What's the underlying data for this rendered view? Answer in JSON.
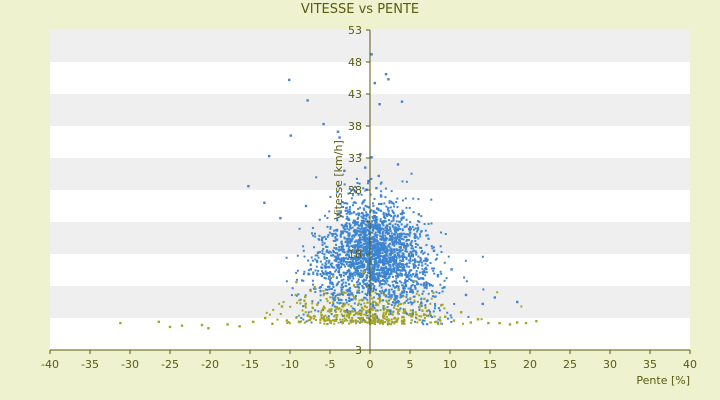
{
  "chart_data": {
    "type": "scatter",
    "title": "VITESSE vs PENTE",
    "xlabel": "Pente [%]",
    "ylabel": "Vitesse [km/h]",
    "xlim": [
      -40,
      40
    ],
    "ylim": [
      3,
      53
    ],
    "x_ticks": [
      -40,
      -35,
      -30,
      -25,
      -20,
      -15,
      -10,
      -5,
      0,
      5,
      10,
      15,
      20,
      25,
      30,
      35,
      40
    ],
    "y_ticks": [
      3,
      8,
      13,
      18,
      23,
      28,
      33,
      38,
      43,
      48,
      53
    ],
    "y_tick_labels": [
      "3",
      "",
      "",
      "18",
      "",
      "28",
      "33",
      "38",
      "43",
      "48",
      "53"
    ],
    "grid": "horizontal alternating bands",
    "colors": {
      "page_bg": "#eef2cf",
      "band_light": "#ffffff",
      "band_dark": "#efefef",
      "axis": "#5a5a10",
      "series1": "#3d85d1",
      "series2": "#a5a520"
    },
    "series": [
      {
        "color": "#3d85d1",
        "points": [
          [
            -10.1,
            45.2
          ],
          [
            -7.8,
            42.0
          ],
          [
            -9.9,
            36.5
          ],
          [
            -12.6,
            33.3
          ],
          [
            -15.2,
            28.6
          ],
          [
            -5.8,
            38.3
          ],
          [
            -4.0,
            37.1
          ],
          [
            -3.8,
            36.2
          ],
          [
            0.2,
            49.2
          ],
          [
            2.0,
            46.1
          ],
          [
            4.0,
            41.8
          ],
          [
            0.6,
            44.7
          ],
          [
            2.3,
            45.3
          ],
          [
            1.2,
            41.4
          ],
          [
            -1.2,
            33.6
          ],
          [
            0.2,
            33.1
          ],
          [
            18.4,
            10.5
          ],
          [
            15.6,
            11.2
          ],
          [
            14.1,
            10.2
          ],
          [
            -13.2,
            26.0
          ],
          [
            -11.2,
            23.6
          ],
          [
            -3.2,
            31.0
          ],
          [
            3.5,
            32.0
          ],
          [
            8.0,
            18.5
          ],
          [
            10.2,
            15.6
          ],
          [
            12.0,
            11.6
          ],
          [
            -8.0,
            25.5
          ],
          [
            6.1,
            24.2
          ],
          [
            -6.0,
            20.2
          ],
          [
            5.0,
            21.8
          ],
          [
            -2.0,
            24.5
          ],
          [
            -1.0,
            22.0
          ],
          [
            0.5,
            20.0
          ],
          [
            1.5,
            19.0
          ],
          [
            -0.5,
            18.5
          ],
          [
            2.5,
            17.2
          ],
          [
            -1.5,
            16.5
          ],
          [
            3.5,
            15.8
          ],
          [
            -2.5,
            14.9
          ],
          [
            1.0,
            14.0
          ],
          [
            -3.5,
            13.2
          ],
          [
            4.5,
            13.0
          ],
          [
            0.0,
            12.0
          ],
          [
            2.0,
            11.4
          ],
          [
            -1.0,
            21.4
          ],
          [
            1.8,
            23.1
          ],
          [
            -2.8,
            19.6
          ],
          [
            3.0,
            18.7
          ],
          [
            -4.2,
            17.4
          ],
          [
            5.5,
            16.1
          ],
          [
            -5.1,
            15.0
          ],
          [
            6.4,
            14.2
          ],
          [
            -3.0,
            22.6
          ],
          [
            0.9,
            25.1
          ],
          [
            -0.8,
            26.2
          ],
          [
            1.4,
            27.0
          ],
          [
            -1.9,
            27.8
          ],
          [
            2.8,
            26.0
          ],
          [
            4.2,
            23.7
          ],
          [
            -4.6,
            21.1
          ],
          [
            7.0,
            17.0
          ],
          [
            -6.5,
            18.2
          ],
          [
            8.5,
            14.7
          ],
          [
            -7.4,
            15.6
          ],
          [
            9.3,
            12.8
          ],
          [
            -2.2,
            10.9
          ],
          [
            0.4,
            9.8
          ],
          [
            3.2,
            10.3
          ],
          [
            -0.2,
            29.4
          ],
          [
            1.1,
            30.2
          ],
          [
            -0.6,
            31.5
          ],
          [
            0.8,
            28.3
          ]
        ]
      },
      {
        "color": "#a5a520",
        "points": [
          [
            -31.2,
            7.2
          ],
          [
            -26.4,
            7.4
          ],
          [
            -25.0,
            6.6
          ],
          [
            -23.5,
            6.8
          ],
          [
            -21.0,
            6.9
          ],
          [
            -20.2,
            6.4
          ],
          [
            -17.8,
            7.0
          ],
          [
            -16.3,
            6.7
          ],
          [
            -14.6,
            7.4
          ],
          [
            -13.1,
            8.0
          ],
          [
            -12.2,
            7.1
          ],
          [
            -11.0,
            9.8
          ],
          [
            -10.4,
            7.6
          ],
          [
            -9.2,
            13.6
          ],
          [
            -8.1,
            11.3
          ],
          [
            -7.5,
            8.2
          ],
          [
            -6.6,
            10.1
          ],
          [
            -5.8,
            7.9
          ],
          [
            -5.0,
            9.0
          ],
          [
            -4.1,
            8.4
          ],
          [
            -3.3,
            12.0
          ],
          [
            -2.6,
            8.7
          ],
          [
            -1.8,
            7.6
          ],
          [
            -1.0,
            9.6
          ],
          [
            -0.3,
            10.4
          ],
          [
            0.5,
            8.1
          ],
          [
            1.3,
            7.3
          ],
          [
            2.2,
            9.2
          ],
          [
            3.1,
            8.0
          ],
          [
            4.0,
            7.5
          ],
          [
            5.0,
            8.6
          ],
          [
            6.2,
            7.7
          ],
          [
            7.1,
            9.1
          ],
          [
            8.3,
            7.4
          ],
          [
            9.4,
            8.2
          ],
          [
            10.5,
            7.6
          ],
          [
            11.4,
            8.9
          ],
          [
            12.6,
            7.3
          ],
          [
            13.5,
            7.8
          ],
          [
            14.8,
            7.2
          ],
          [
            16.2,
            7.2
          ],
          [
            17.5,
            7.0
          ],
          [
            18.4,
            7.3
          ],
          [
            19.5,
            7.2
          ],
          [
            20.8,
            7.5
          ],
          [
            -4.6,
            14.5
          ],
          [
            -2.0,
            13.1
          ],
          [
            1.8,
            11.6
          ],
          [
            -0.8,
            15.2
          ],
          [
            3.6,
            12.4
          ],
          [
            -6.9,
            12.8
          ],
          [
            6.8,
            11.0
          ]
        ]
      }
    ]
  }
}
